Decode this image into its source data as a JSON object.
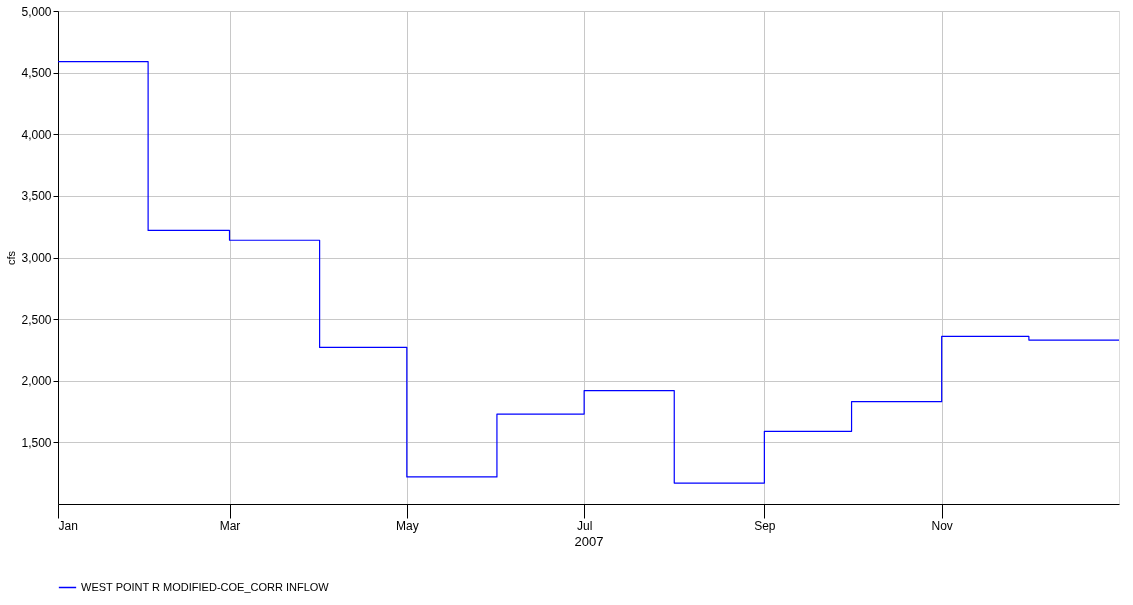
{
  "chart_data": {
    "type": "step",
    "xlabel": "2007",
    "ylabel": "cfs",
    "x": [
      "2007-01",
      "2007-02",
      "2007-03",
      "2007-04",
      "2007-05",
      "2007-06",
      "2007-07",
      "2007-08",
      "2007-09",
      "2007-10",
      "2007-11",
      "2007-12",
      "2008-01"
    ],
    "series": [
      {
        "name": "WEST POINT R MODIFIED-COE_CORR INFLOW",
        "color": "#0000ff",
        "values": [
          4590,
          3220,
          3140,
          2270,
          1220,
          1730,
          1920,
          1170,
          1590,
          1830,
          2360,
          2330,
          2330
        ]
      }
    ],
    "xlim": [
      "2007-01-01",
      "2008-01-01"
    ],
    "xticks": [
      {
        "value": "2007-01-01",
        "label": "Jan"
      },
      {
        "value": "2007-03-01",
        "label": "Mar"
      },
      {
        "value": "2007-05-01",
        "label": "May"
      },
      {
        "value": "2007-07-01",
        "label": "Jul"
      },
      {
        "value": "2007-09-01",
        "label": "Sep"
      },
      {
        "value": "2007-11-01",
        "label": "Nov"
      }
    ],
    "ylim": [
      1000,
      5000
    ],
    "yticks": [
      {
        "value": 1500,
        "label": "1,500"
      },
      {
        "value": 2000,
        "label": "2,000"
      },
      {
        "value": 2500,
        "label": "2,500"
      },
      {
        "value": 3000,
        "label": "3,000"
      },
      {
        "value": 3500,
        "label": "3,500"
      },
      {
        "value": 4000,
        "label": "4,000"
      },
      {
        "value": 4500,
        "label": "4,500"
      },
      {
        "value": 5000,
        "label": "5,000"
      }
    ],
    "grid": true,
    "legend": "bottom left",
    "marker": "none",
    "line_style": "solid"
  }
}
